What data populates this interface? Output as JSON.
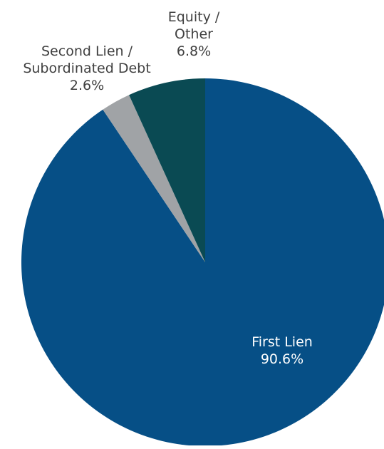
{
  "chart_data": {
    "type": "pie",
    "title": "",
    "start_angle_deg": 0,
    "direction": "clockwise",
    "legend": "none",
    "slices": [
      {
        "key": "first-lien",
        "label_lines": [
          "First Lien",
          "90.6%"
        ],
        "value": 90.6,
        "color": "#064f86",
        "label_color": "#ffffff"
      },
      {
        "key": "second-lien",
        "label_lines": [
          "Second Lien /",
          "Subordinated Debt",
          "2.6%"
        ],
        "value": 2.6,
        "color": "#a0a3a6",
        "label_color": "#404040"
      },
      {
        "key": "equity-other",
        "label_lines": [
          "Equity /",
          "Other",
          "6.8%"
        ],
        "value": 6.8,
        "color": "#0a4a53",
        "label_color": "#404040"
      }
    ]
  }
}
